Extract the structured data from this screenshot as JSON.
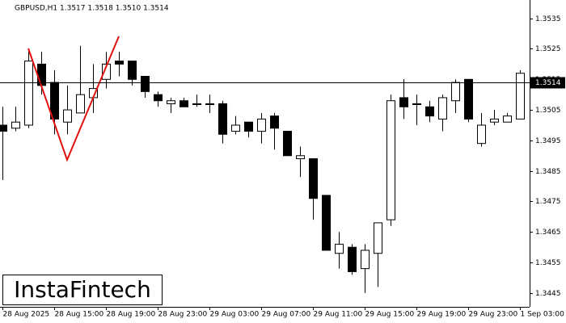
{
  "chart_data": {
    "type": "candlestick",
    "title": "GBPUSD,H1  1.3517 1.3518 1.3510 1.3514",
    "watermark": "InstaFintech",
    "categories": [
      "28 Aug 2025",
      null,
      null,
      null,
      "28 Aug 15:00",
      null,
      null,
      null,
      "28 Aug 19:00",
      null,
      null,
      null,
      "28 Aug 23:00",
      null,
      null,
      null,
      "29 Aug 03:00",
      null,
      null,
      null,
      "29 Aug 07:00",
      null,
      null,
      null,
      "29 Aug 11:00",
      null,
      null,
      null,
      "29 Aug 15:00",
      null,
      null,
      null,
      "29 Aug 19:00",
      null,
      null,
      null,
      "29 Aug 23:00",
      null,
      null,
      null,
      "1 Sep 03:00"
    ],
    "open": [
      1.35,
      1.3499,
      1.35,
      1.352,
      1.3514,
      1.3501,
      1.3504,
      1.3509,
      1.3515,
      1.3521,
      1.3521,
      1.3516,
      1.351,
      1.3507,
      1.3508,
      1.3507,
      1.3507,
      1.3507,
      1.3498,
      1.3501,
      1.3498,
      1.3503,
      1.3498,
      1.3489,
      1.3489,
      1.3477,
      1.3458,
      1.346,
      1.3453,
      1.3458,
      1.3469,
      1.3509,
      1.3507,
      1.3506,
      1.3502,
      1.3508,
      1.3515,
      1.3494,
      1.3501,
      1.3501,
      1.3502
    ],
    "high": [
      1.3506,
      1.3506,
      1.3525,
      1.3524,
      1.3518,
      1.3513,
      1.3526,
      1.352,
      1.3524,
      1.3524,
      1.3521,
      1.3516,
      1.3511,
      1.3509,
      1.3509,
      1.351,
      1.351,
      1.3508,
      1.3503,
      1.3501,
      1.3504,
      1.3504,
      1.3498,
      1.3493,
      1.3489,
      1.3477,
      1.3465,
      1.3461,
      1.3461,
      1.3468,
      1.351,
      1.3515,
      1.351,
      1.3508,
      1.351,
      1.3515,
      1.3515,
      1.3504,
      1.3505,
      1.3504,
      1.3518
    ],
    "low": [
      1.3482,
      1.3498,
      1.3499,
      1.351,
      1.3497,
      1.3497,
      1.3504,
      1.3504,
      1.3512,
      1.3516,
      1.3513,
      1.3509,
      1.3506,
      1.3504,
      1.3506,
      1.3506,
      1.3504,
      1.3494,
      1.3497,
      1.3496,
      1.3494,
      1.3492,
      1.349,
      1.3483,
      1.3469,
      1.3459,
      1.3453,
      1.3451,
      1.3445,
      1.3447,
      1.3467,
      1.3502,
      1.35,
      1.3501,
      1.3498,
      1.3504,
      1.3501,
      1.3493,
      1.35,
      1.3501,
      1.3502
    ],
    "close": [
      1.3498,
      1.3501,
      1.3521,
      1.3513,
      1.3502,
      1.3505,
      1.351,
      1.3512,
      1.352,
      1.352,
      1.3515,
      1.3511,
      1.3508,
      1.3508,
      1.3506,
      1.3507,
      1.3507,
      1.3497,
      1.35,
      1.3498,
      1.3502,
      1.3499,
      1.349,
      1.349,
      1.3476,
      1.3459,
      1.3461,
      1.3452,
      1.3459,
      1.3468,
      1.3508,
      1.3506,
      1.3507,
      1.3503,
      1.3509,
      1.3514,
      1.3502,
      1.35,
      1.3502,
      1.3503,
      1.3517
    ],
    "price_line": 1.3514,
    "ylim": [
      1.3441,
      1.3541
    ],
    "yticks": [
      1.3535,
      1.3525,
      1.3515,
      1.3505,
      1.3495,
      1.3485,
      1.3475,
      1.3465,
      1.3455,
      1.3445
    ]
  }
}
